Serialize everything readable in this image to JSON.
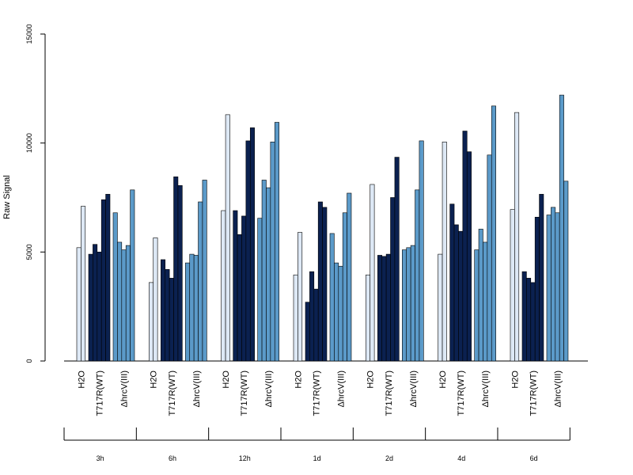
{
  "chart_data": {
    "type": "bar",
    "title": "",
    "xlabel": "",
    "ylabel": "Raw Signal",
    "ylim": [
      0,
      15000
    ],
    "yticks": [
      "0",
      "5000",
      "10000",
      "15000"
    ],
    "grid": false,
    "colors": {
      "H2O": "#dde8f5",
      "T717": "#0b2150",
      "hrcV": "#5b9ac9"
    },
    "groups": [
      {
        "label": "3h",
        "categories": [
          {
            "label": "H2O",
            "color_key": "H2O",
            "values": [
              5200,
              7100
            ]
          },
          {
            "label": "T717R(WT)",
            "color_key": "T717",
            "values": [
              4900,
              5350,
              5000,
              7400,
              7650
            ]
          },
          {
            "label": "ΔhrcV(III)",
            "color_key": "hrcV",
            "values": [
              6800,
              5450,
              5100,
              5300,
              7850
            ]
          }
        ]
      },
      {
        "label": "6h",
        "categories": [
          {
            "label": "H2O",
            "color_key": "H2O",
            "values": [
              3600,
              5650
            ]
          },
          {
            "label": "T717R(WT)",
            "color_key": "T717",
            "values": [
              4650,
              4200,
              3800,
              8450,
              8050
            ]
          },
          {
            "label": "ΔhrcV(III)",
            "color_key": "hrcV",
            "values": [
              4500,
              4900,
              4850,
              7300,
              8300
            ]
          }
        ]
      },
      {
        "label": "12h",
        "categories": [
          {
            "label": "H2O",
            "color_key": "H2O",
            "values": [
              6900,
              11300
            ]
          },
          {
            "label": "T717R(WT)",
            "color_key": "T717",
            "values": [
              6900,
              5800,
              6650,
              10100,
              10700
            ]
          },
          {
            "label": "ΔhrcV(III)",
            "color_key": "hrcV",
            "values": [
              6550,
              8300,
              7950,
              10050,
              10950
            ]
          }
        ]
      },
      {
        "label": "1d",
        "categories": [
          {
            "label": "H2O",
            "color_key": "H2O",
            "values": [
              3950,
              5900
            ]
          },
          {
            "label": "T717R(WT)",
            "color_key": "T717",
            "values": [
              2700,
              4100,
              3300,
              7300,
              7050
            ]
          },
          {
            "label": "ΔhrcV(III)",
            "color_key": "hrcV",
            "values": [
              5850,
              4500,
              4350,
              6800,
              7700
            ]
          }
        ]
      },
      {
        "label": "2d",
        "categories": [
          {
            "label": "H2O",
            "color_key": "H2O",
            "values": [
              3950,
              8100
            ]
          },
          {
            "label": "T717R(WT)",
            "color_key": "T717",
            "values": [
              4850,
              4800,
              4900,
              7500,
              9350
            ]
          },
          {
            "label": "ΔhrcV(III)",
            "color_key": "hrcV",
            "values": [
              5100,
              5200,
              5300,
              7850,
              10100
            ]
          }
        ]
      },
      {
        "label": "4d",
        "categories": [
          {
            "label": "H2O",
            "color_key": "H2O",
            "values": [
              4900,
              10050
            ]
          },
          {
            "label": "T717R(WT)",
            "color_key": "T717",
            "values": [
              7200,
              6250,
              5950,
              10550,
              9600
            ]
          },
          {
            "label": "ΔhrcV(III)",
            "color_key": "hrcV",
            "values": [
              5100,
              6050,
              5450,
              9450,
              11700
            ]
          }
        ]
      },
      {
        "label": "6d",
        "categories": [
          {
            "label": "H2O",
            "color_key": "H2O",
            "values": [
              6950,
              11400
            ]
          },
          {
            "label": "T717R(WT)",
            "color_key": "T717",
            "values": [
              4100,
              3800,
              3600,
              6600,
              7650
            ]
          },
          {
            "label": "ΔhrcV(III)",
            "color_key": "hrcV",
            "values": [
              6700,
              7050,
              6800,
              12200,
              8250
            ]
          }
        ]
      }
    ]
  }
}
